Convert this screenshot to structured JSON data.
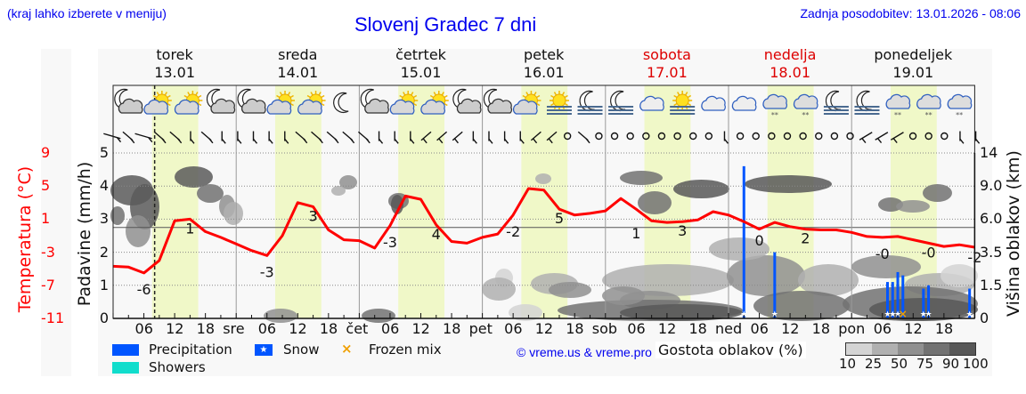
{
  "header": {
    "hint": "(kraj lahko izberete v meniju)",
    "title": "Slovenj Gradec 7 dni",
    "updated": "Zadnja posodobitev: 13.01.2026 - 08:06"
  },
  "days": [
    {
      "name": "torek",
      "date": "13.01",
      "weekend": false
    },
    {
      "name": "sreda",
      "date": "14.01",
      "weekend": false
    },
    {
      "name": "četrtek",
      "date": "15.01",
      "weekend": false
    },
    {
      "name": "petek",
      "date": "16.01",
      "weekend": false
    },
    {
      "name": "sobota",
      "date": "17.01",
      "weekend": true
    },
    {
      "name": "nedelja",
      "date": "18.01",
      "weekend": true
    },
    {
      "name": "ponedeljek",
      "date": "19.01",
      "weekend": false
    }
  ],
  "axes": {
    "left_temp_label": "Temperatura (°C)",
    "left_temp_ticks": [
      "9",
      "5",
      "1",
      "-3",
      "-7",
      "-11"
    ],
    "left_precip_label": "Padavine (mm/h)",
    "left_precip_ticks": [
      "5",
      "4",
      "3",
      "2",
      "1",
      "0"
    ],
    "right_label": "Višina oblakov (km)",
    "right_ticks": [
      "14",
      "9.0",
      "6.0",
      "3.5",
      "1.5",
      "0"
    ],
    "x_ticks": [
      "06",
      "12",
      "18",
      "sre",
      "06",
      "12",
      "18",
      "čet",
      "06",
      "12",
      "18",
      "pet",
      "06",
      "12",
      "18",
      "sob",
      "06",
      "12",
      "18",
      "ned",
      "06",
      "12",
      "18",
      "pon",
      "06",
      "12",
      "18"
    ]
  },
  "legend": {
    "precipitation": "Precipitation",
    "snow": "Snow",
    "frozen_mix": "Frozen mix",
    "showers": "Showers",
    "credit": "© vreme.us & vreme.pro",
    "density_title": "Gostota oblakov (%)",
    "density_ticks": [
      "10",
      "25",
      "50",
      "75",
      "90",
      "100"
    ]
  },
  "colors": {
    "title_blue": "#0000ee",
    "temp_red": "#ff0000",
    "weekend_red": "#dd0000",
    "precip_blue": "#0055ff",
    "showers_teal": "#11ddcc",
    "frozen_orange": "#f0a000",
    "daylight": "#f0f8c8"
  },
  "icons": [
    "moon-cloud",
    "sun-cloud",
    "sun-cloud",
    "moon-cloud",
    "moon-cloud",
    "sun-cloud",
    "sun-cloud",
    "moon",
    "moon-cloud",
    "sun-cloud",
    "sun-cloud",
    "moon-cloud",
    "moon-cloud",
    "sun-cloud",
    "sun-fog",
    "moon-fog",
    "moon-fog",
    "cloud",
    "sun-fog",
    "cloud",
    "cloud",
    "cloud-snow",
    "cloud-snow",
    "moon-fog",
    "moon-fog",
    "cloud-snow",
    "cloud-snow",
    "cloud-snow"
  ],
  "chart_data": {
    "type": "line",
    "title": "Slovenj Gradec 7 dni",
    "xlabel": "",
    "ylabel": "Temperatura (°C)",
    "ylim": [
      -11,
      9
    ],
    "y2label": "Padavine (mm/h)",
    "y2lim": [
      0,
      5
    ],
    "y3label": "Višina oblakov (km)",
    "y3_ticks": [
      0,
      1.5,
      3.5,
      6.0,
      9.0,
      14
    ],
    "grid": true,
    "series": [
      {
        "name": "Temperatura",
        "unit": "°C",
        "hours": [
          0,
          3,
          6,
          9,
          12,
          15,
          18,
          21,
          24,
          27,
          30,
          33,
          36,
          39,
          42,
          45,
          48,
          51,
          54,
          57,
          60,
          63,
          66,
          69,
          72,
          75,
          78,
          81,
          84,
          87,
          90,
          93,
          96,
          99,
          102,
          105,
          108,
          111,
          114,
          117,
          120,
          123,
          126,
          129,
          132,
          135,
          138,
          141,
          144,
          147,
          150,
          153,
          156,
          159,
          162,
          165,
          168
        ],
        "values": [
          -4.7,
          -4.8,
          -5.5,
          -4.0,
          0.8,
          1.0,
          -0.5,
          -1.2,
          -2.0,
          -2.8,
          -3.4,
          -1.0,
          3.0,
          2.5,
          -0.3,
          -1.5,
          -1.6,
          -2.5,
          0.2,
          3.8,
          3.4,
          0.3,
          -1.7,
          -1.9,
          -1.2,
          -0.8,
          1.5,
          4.7,
          4.5,
          2.2,
          1.5,
          1.7,
          2.0,
          3.5,
          2.2,
          0.8,
          0.6,
          0.7,
          0.9,
          1.9,
          1.5,
          0.7,
          -0.2,
          0.6,
          0.1,
          -0.2,
          -0.3,
          -0.3,
          -0.6,
          -1.1,
          -1.2,
          -1.1,
          -1.5,
          -1.9,
          -2.3,
          -2.1,
          -2.4
        ]
      },
      {
        "name": "Precipitation",
        "unit": "mm/h",
        "type": "bar",
        "bars": [
          {
            "hour": 123,
            "value": 4.6,
            "kind": "snow"
          },
          {
            "hour": 129,
            "value": 2.0,
            "kind": "snow"
          },
          {
            "hour": 151,
            "value": 1.1,
            "kind": "snow"
          },
          {
            "hour": 152,
            "value": 1.1,
            "kind": "snow"
          },
          {
            "hour": 153,
            "value": 1.4,
            "kind": "snow"
          },
          {
            "hour": 154,
            "value": 1.3,
            "kind": "frozen_mix"
          },
          {
            "hour": 158,
            "value": 0.9,
            "kind": "snow"
          },
          {
            "hour": 159,
            "value": 1.0,
            "kind": "snow"
          },
          {
            "hour": 167,
            "value": 0.9,
            "kind": "snow"
          }
        ]
      }
    ],
    "temp_labels": [
      {
        "hour": 6,
        "value": "-6"
      },
      {
        "hour": 15,
        "value": "1"
      },
      {
        "hour": 30,
        "value": "-3"
      },
      {
        "hour": 39,
        "value": "3"
      },
      {
        "hour": 54,
        "value": "-3"
      },
      {
        "hour": 63,
        "value": "4"
      },
      {
        "hour": 78,
        "value": "-2"
      },
      {
        "hour": 87,
        "value": "5"
      },
      {
        "hour": 102,
        "value": "1"
      },
      {
        "hour": 111,
        "value": "3"
      },
      {
        "hour": 126,
        "value": "0"
      },
      {
        "hour": 135,
        "value": "2"
      },
      {
        "hour": 150,
        "value": "-0"
      },
      {
        "hour": 159,
        "value": "-0"
      },
      {
        "hour": 168,
        "value": "-2"
      }
    ],
    "now_hour": 8.1,
    "legend_position": "bottom"
  }
}
